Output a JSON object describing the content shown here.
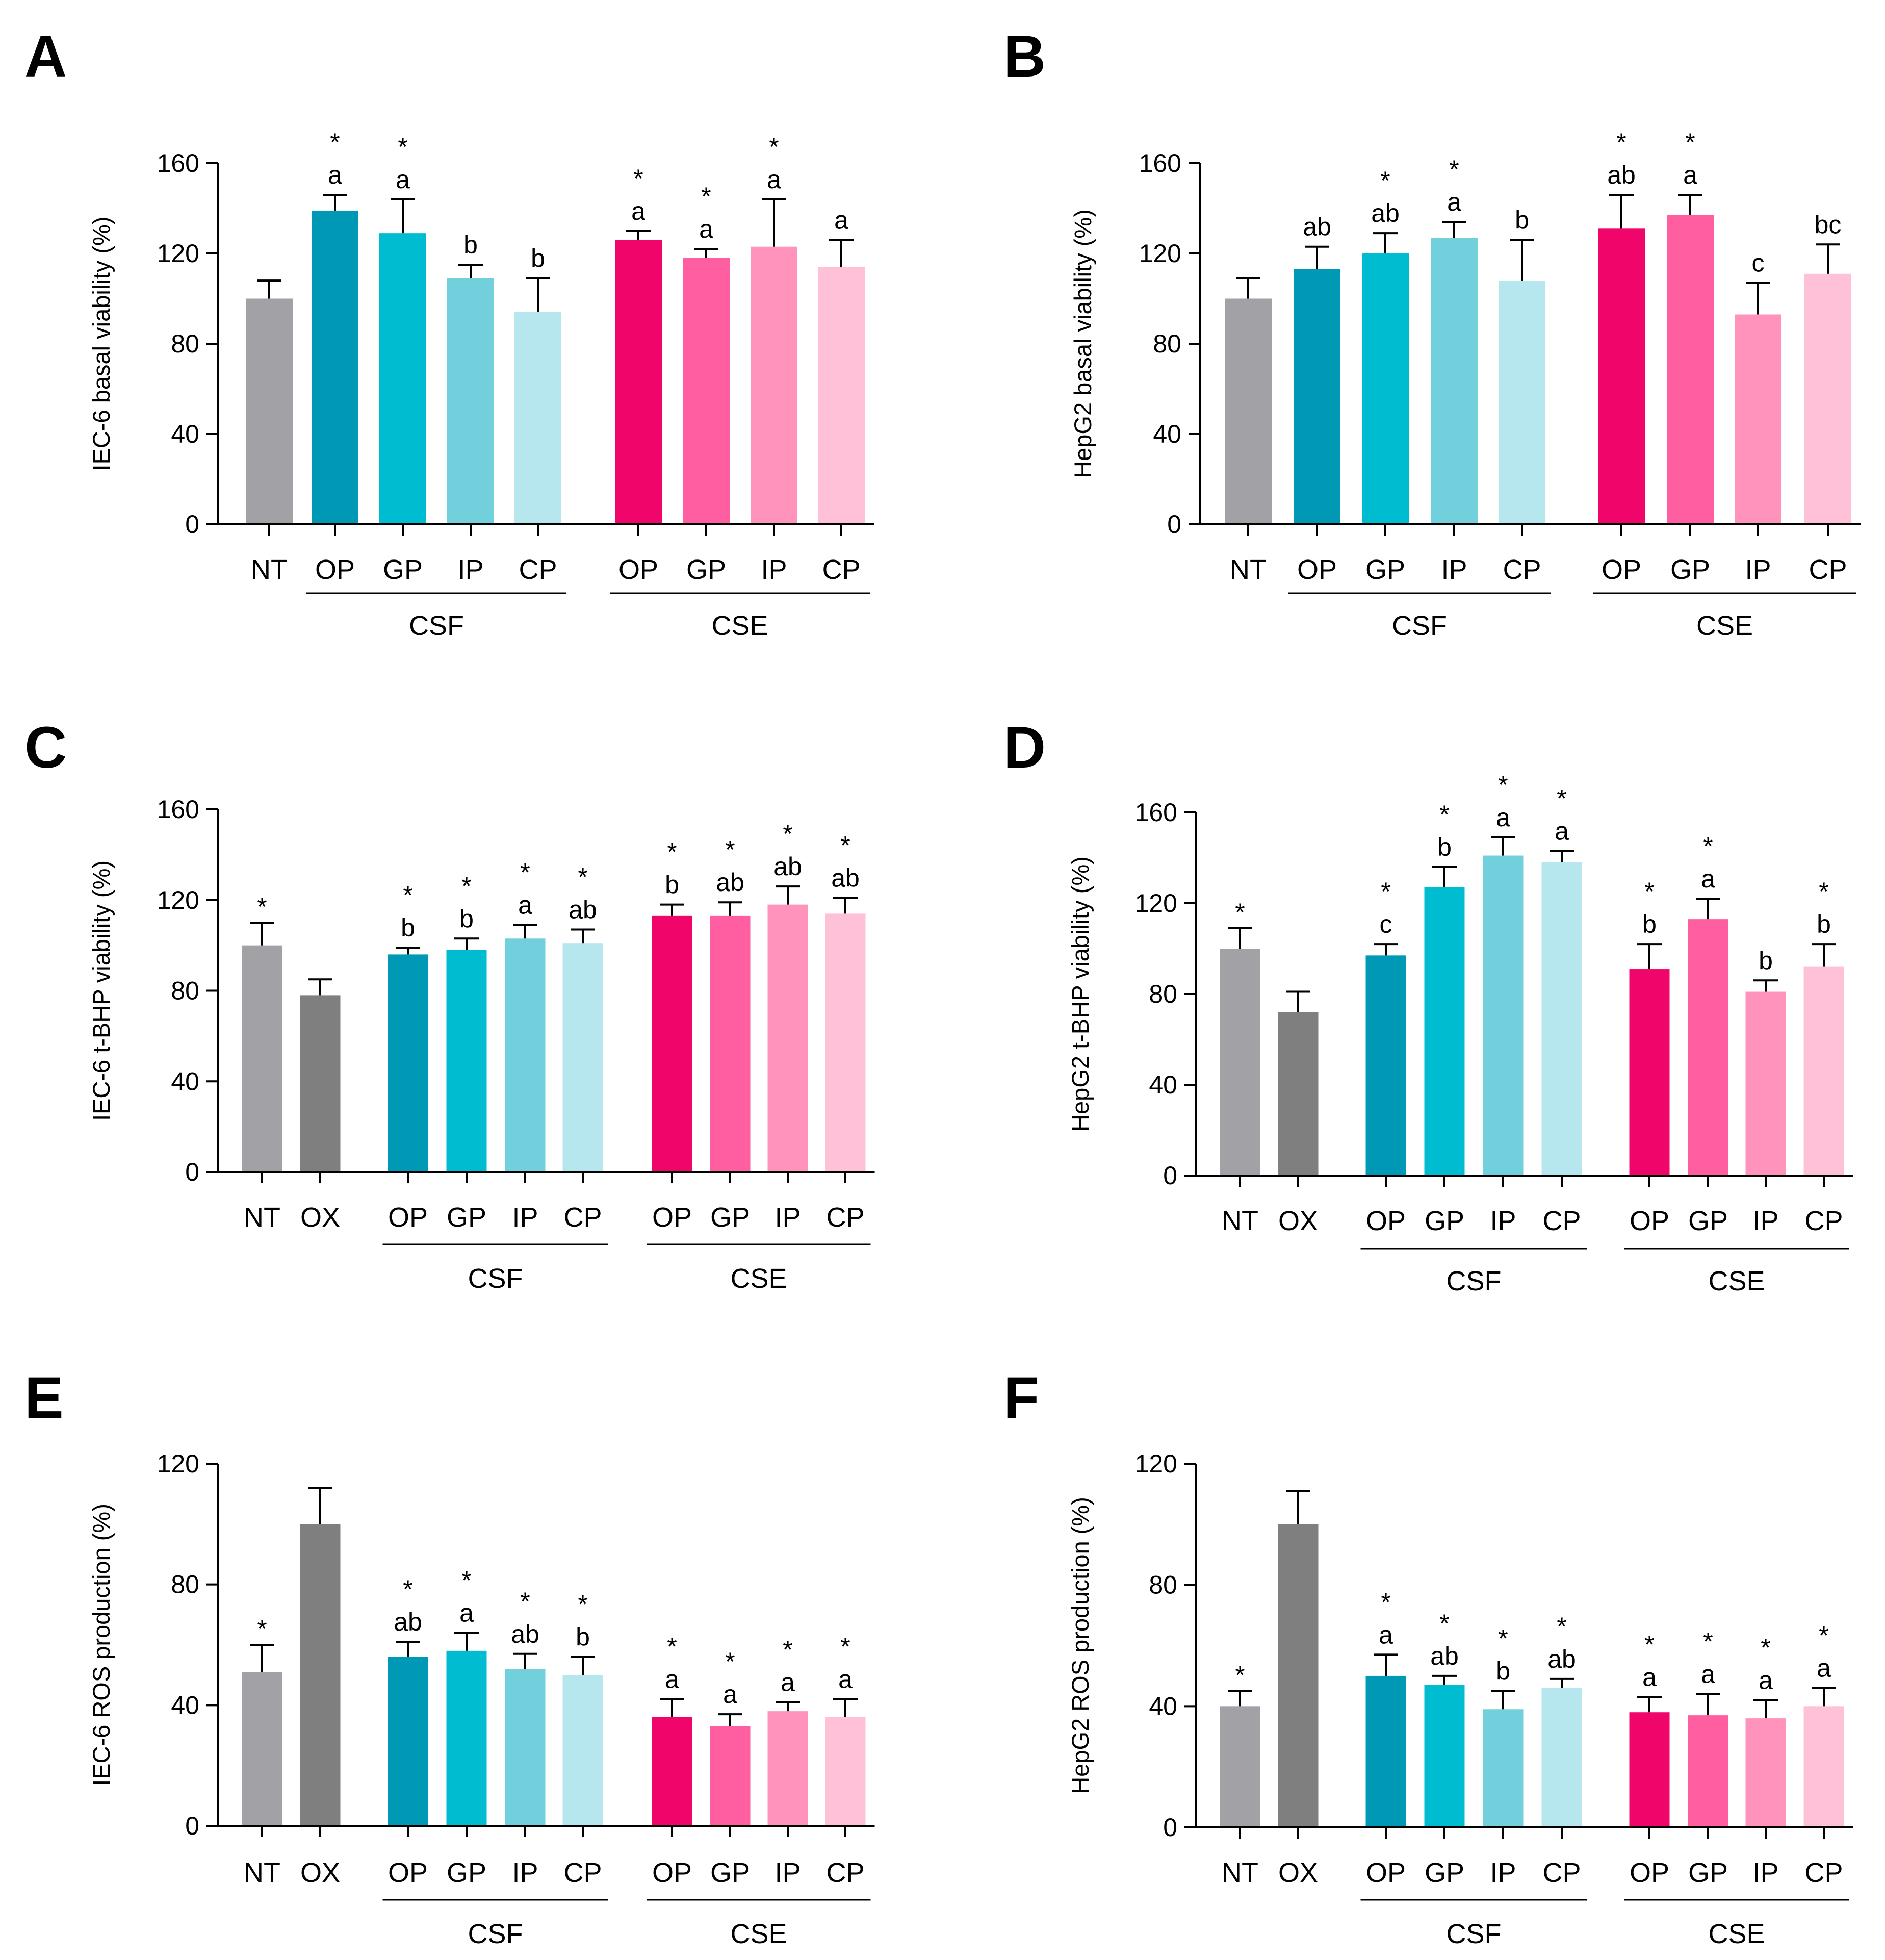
{
  "colors": {
    "NT": "#a2a1a6",
    "OX": "#7f7f7f",
    "CSF_OP": "#0099b5",
    "CSF_GP": "#00bcd0",
    "CSF_IP": "#72d0dd",
    "CSF_CP": "#b6e7ee",
    "CSE_OP": "#f0066a",
    "CSE_GP": "#ff5ea0",
    "CSE_IP": "#ff93bb",
    "CSE_CP": "#ffc1d8",
    "axis": "#000000"
  },
  "chart_data": [
    {
      "type": "bar",
      "panel": "A",
      "ylabel": "IEC-6 basal viability (%)",
      "ylim": [
        0,
        160
      ],
      "yticks": [
        0,
        40,
        80,
        120,
        160
      ],
      "tick_labels": [
        "0",
        "40",
        "80",
        "120",
        "160"
      ],
      "categories": [
        "NT",
        "OP",
        "GP",
        "IP",
        "CP",
        "OP",
        "GP",
        "IP",
        "CP"
      ],
      "color_keys": [
        "NT",
        "CSF_OP",
        "CSF_GP",
        "CSF_IP",
        "CSF_CP",
        "CSE_OP",
        "CSE_GP",
        "CSE_IP",
        "CSE_CP"
      ],
      "values": [
        100,
        139,
        129,
        109,
        94,
        126,
        118,
        123,
        114
      ],
      "errors": [
        8,
        7,
        15,
        6,
        15,
        4,
        4,
        21,
        12
      ],
      "letters": [
        "",
        "a",
        "a",
        "b",
        "b",
        "a",
        "a",
        "a",
        "a"
      ],
      "stars": [
        "",
        "*",
        "*",
        "",
        "",
        "*",
        "*",
        "*",
        ""
      ],
      "groups": [
        {
          "label": "CSF",
          "from": 1,
          "to": 4
        },
        {
          "label": "CSE",
          "from": 5,
          "to": 8
        }
      ]
    },
    {
      "type": "bar",
      "panel": "B",
      "ylabel": "HepG2 basal viability (%)",
      "ylim": [
        0,
        160
      ],
      "yticks": [
        0,
        40,
        80,
        120,
        160
      ],
      "tick_labels": [
        "0",
        "40",
        "80",
        "120",
        "160"
      ],
      "categories": [
        "NT",
        "OP",
        "GP",
        "IP",
        "CP",
        "OP",
        "GP",
        "IP",
        "CP"
      ],
      "color_keys": [
        "NT",
        "CSF_OP",
        "CSF_GP",
        "CSF_IP",
        "CSF_CP",
        "CSE_OP",
        "CSE_GP",
        "CSE_IP",
        "CSE_CP"
      ],
      "values": [
        100,
        113,
        120,
        127,
        108,
        131,
        137,
        93,
        111
      ],
      "errors": [
        9,
        10,
        9,
        7,
        18,
        15,
        9,
        14,
        13
      ],
      "letters": [
        "",
        "ab",
        "ab",
        "a",
        "b",
        "ab",
        "a",
        "c",
        "bc"
      ],
      "stars": [
        "",
        "",
        "*",
        "*",
        "",
        "*",
        "*",
        "",
        ""
      ],
      "groups": [
        {
          "label": "CSF",
          "from": 1,
          "to": 4
        },
        {
          "label": "CSE",
          "from": 5,
          "to": 8
        }
      ]
    },
    {
      "type": "bar",
      "panel": "C",
      "ylabel": "IEC-6 t-BHP viability (%)",
      "ylim": [
        0,
        160
      ],
      "yticks": [
        0,
        40,
        80,
        120,
        160
      ],
      "tick_labels": [
        "0",
        "40",
        "80",
        "120",
        "160"
      ],
      "categories": [
        "NT",
        "OX",
        "OP",
        "GP",
        "IP",
        "CP",
        "OP",
        "GP",
        "IP",
        "CP"
      ],
      "color_keys": [
        "NT",
        "OX",
        "CSF_OP",
        "CSF_GP",
        "CSF_IP",
        "CSF_CP",
        "CSE_OP",
        "CSE_GP",
        "CSE_IP",
        "CSE_CP"
      ],
      "values": [
        100,
        78,
        96,
        98,
        103,
        101,
        113,
        113,
        118,
        114
      ],
      "errors": [
        10,
        7,
        3,
        5,
        6,
        6,
        5,
        6,
        8,
        7
      ],
      "letters": [
        "",
        "",
        "b",
        "b",
        "a",
        "ab",
        "b",
        "ab",
        "ab",
        "ab"
      ],
      "stars": [
        "*",
        "",
        "*",
        "*",
        "*",
        "*",
        "*",
        "*",
        "*",
        "*"
      ],
      "groups": [
        {
          "label": "CSF",
          "from": 2,
          "to": 5
        },
        {
          "label": "CSE",
          "from": 6,
          "to": 9
        }
      ]
    },
    {
      "type": "bar",
      "panel": "D",
      "ylabel": "HepG2 t-BHP viability (%)",
      "ylim": [
        0,
        160
      ],
      "yticks": [
        0,
        40,
        80,
        120,
        160
      ],
      "tick_labels": [
        "0",
        "40",
        "80",
        "120",
        "160"
      ],
      "categories": [
        "NT",
        "OX",
        "OP",
        "GP",
        "IP",
        "CP",
        "OP",
        "GP",
        "IP",
        "CP"
      ],
      "color_keys": [
        "NT",
        "OX",
        "CSF_OP",
        "CSF_GP",
        "CSF_IP",
        "CSF_CP",
        "CSE_OP",
        "CSE_GP",
        "CSE_IP",
        "CSE_CP"
      ],
      "values": [
        100,
        72,
        97,
        127,
        141,
        138,
        91,
        113,
        81,
        92
      ],
      "errors": [
        9,
        9,
        5,
        9,
        8,
        5,
        11,
        9,
        5,
        10
      ],
      "letters": [
        "",
        "",
        "c",
        "b",
        "a",
        "a",
        "b",
        "a",
        "b",
        "b"
      ],
      "stars": [
        "*",
        "",
        "*",
        "*",
        "*",
        "*",
        "*",
        "*",
        "",
        "*"
      ],
      "groups": [
        {
          "label": "CSF",
          "from": 2,
          "to": 5
        },
        {
          "label": "CSE",
          "from": 6,
          "to": 9
        }
      ]
    },
    {
      "type": "bar",
      "panel": "E",
      "ylabel": "IEC-6 ROS production (%)",
      "ylim": [
        0,
        120
      ],
      "yticks": [
        0,
        40,
        80,
        120
      ],
      "tick_labels": [
        "0",
        "40",
        "80",
        "120"
      ],
      "categories": [
        "NT",
        "OX",
        "OP",
        "GP",
        "IP",
        "CP",
        "OP",
        "GP",
        "IP",
        "CP"
      ],
      "color_keys": [
        "NT",
        "OX",
        "CSF_OP",
        "CSF_GP",
        "CSF_IP",
        "CSF_CP",
        "CSE_OP",
        "CSE_GP",
        "CSE_IP",
        "CSE_CP"
      ],
      "values": [
        51,
        100,
        56,
        58,
        52,
        50,
        36,
        33,
        38,
        36
      ],
      "errors": [
        9,
        12,
        5,
        6,
        5,
        6,
        6,
        4,
        3,
        6
      ],
      "letters": [
        "",
        "",
        "ab",
        "a",
        "ab",
        "b",
        "a",
        "a",
        "a",
        "a"
      ],
      "stars": [
        "*",
        "",
        "*",
        "*",
        "*",
        "*",
        "*",
        "*",
        "*",
        "*"
      ],
      "groups": [
        {
          "label": "CSF",
          "from": 2,
          "to": 5
        },
        {
          "label": "CSE",
          "from": 6,
          "to": 9
        }
      ]
    },
    {
      "type": "bar",
      "panel": "F",
      "ylabel": "HepG2 ROS production (%)",
      "ylim": [
        0,
        120
      ],
      "yticks": [
        0,
        40,
        80,
        120
      ],
      "tick_labels": [
        "0",
        "40",
        "80",
        "120"
      ],
      "categories": [
        "NT",
        "OX",
        "OP",
        "GP",
        "IP",
        "CP",
        "OP",
        "GP",
        "IP",
        "CP"
      ],
      "color_keys": [
        "NT",
        "OX",
        "CSF_OP",
        "CSF_GP",
        "CSF_IP",
        "CSF_CP",
        "CSE_OP",
        "CSE_GP",
        "CSE_IP",
        "CSE_CP"
      ],
      "values": [
        40,
        100,
        50,
        47,
        39,
        46,
        38,
        37,
        36,
        40
      ],
      "errors": [
        5,
        11,
        7,
        3,
        6,
        3,
        5,
        7,
        6,
        6
      ],
      "letters": [
        "",
        "",
        "a",
        "ab",
        "b",
        "ab",
        "a",
        "a",
        "a",
        "a"
      ],
      "stars": [
        "*",
        "",
        "*",
        "*",
        "*",
        "*",
        "*",
        "*",
        "*",
        "*"
      ],
      "groups": [
        {
          "label": "CSF",
          "from": 2,
          "to": 5
        },
        {
          "label": "CSE",
          "from": 6,
          "to": 9
        }
      ]
    }
  ]
}
